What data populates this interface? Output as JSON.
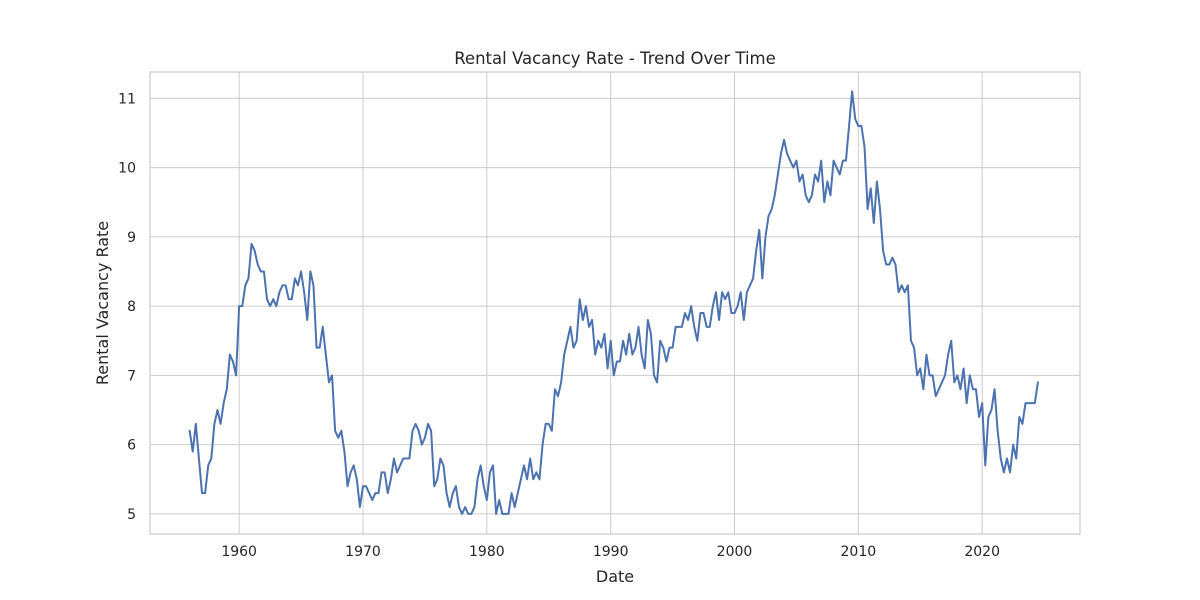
{
  "chart_data": {
    "type": "line",
    "title": "Rental Vacancy Rate - Trend Over Time",
    "xlabel": "Date",
    "ylabel": "Rental Vacancy Rate",
    "xlim": [
      1952.8,
      2027.9
    ],
    "ylim": [
      4.71,
      11.38
    ],
    "x_ticks": [
      1960,
      1970,
      1980,
      1990,
      2000,
      2010,
      2020
    ],
    "y_ticks": [
      5,
      6,
      7,
      8,
      9,
      10,
      11
    ],
    "grid": true,
    "legend": "none",
    "line_color": "#4c72b0",
    "series": [
      {
        "x": [
          1956.0,
          1956.25,
          1956.5,
          1956.75,
          1957.0,
          1957.25,
          1957.5,
          1957.75,
          1958.0,
          1958.25,
          1958.5,
          1958.75,
          1959.0,
          1959.25,
          1959.5,
          1959.75,
          1960.0,
          1960.25,
          1960.5,
          1960.75,
          1961.0,
          1961.25,
          1961.5,
          1961.75,
          1962.0,
          1962.25,
          1962.5,
          1962.75,
          1963.0,
          1963.25,
          1963.5,
          1963.75,
          1964.0,
          1964.25,
          1964.5,
          1964.75,
          1965.0,
          1965.25,
          1965.5,
          1965.75,
          1966.0,
          1966.25,
          1966.5,
          1966.75,
          1967.0,
          1967.25,
          1967.5,
          1967.75,
          1968.0,
          1968.25,
          1968.5,
          1968.75,
          1969.0,
          1969.25,
          1969.5,
          1969.75,
          1970.0,
          1970.25,
          1970.5,
          1970.75,
          1971.0,
          1971.25,
          1971.5,
          1971.75,
          1972.0,
          1972.25,
          1972.5,
          1972.75,
          1973.0,
          1973.25,
          1973.5,
          1973.75,
          1974.0,
          1974.25,
          1974.5,
          1974.75,
          1975.0,
          1975.25,
          1975.5,
          1975.75,
          1976.0,
          1976.25,
          1976.5,
          1976.75,
          1977.0,
          1977.25,
          1977.5,
          1977.75,
          1978.0,
          1978.25,
          1978.5,
          1978.75,
          1979.0,
          1979.25,
          1979.5,
          1979.75,
          1980.0,
          1980.25,
          1980.5,
          1980.75,
          1981.0,
          1981.25,
          1981.5,
          1981.75,
          1982.0,
          1982.25,
          1982.5,
          1982.75,
          1983.0,
          1983.25,
          1983.5,
          1983.75,
          1984.0,
          1984.25,
          1984.5,
          1984.75,
          1985.0,
          1985.25,
          1985.5,
          1985.75,
          1986.0,
          1986.25,
          1986.5,
          1986.75,
          1987.0,
          1987.25,
          1987.5,
          1987.75,
          1988.0,
          1988.25,
          1988.5,
          1988.75,
          1989.0,
          1989.25,
          1989.5,
          1989.75,
          1990.0,
          1990.25,
          1990.5,
          1990.75,
          1991.0,
          1991.25,
          1991.5,
          1991.75,
          1992.0,
          1992.25,
          1992.5,
          1992.75,
          1993.0,
          1993.25,
          1993.5,
          1993.75,
          1994.0,
          1994.25,
          1994.5,
          1994.75,
          1995.0,
          1995.25,
          1995.5,
          1995.75,
          1996.0,
          1996.25,
          1996.5,
          1996.75,
          1997.0,
          1997.25,
          1997.5,
          1997.75,
          1998.0,
          1998.25,
          1998.5,
          1998.75,
          1999.0,
          1999.25,
          1999.5,
          1999.75,
          2000.0,
          2000.25,
          2000.5,
          2000.75,
          2001.0,
          2001.25,
          2001.5,
          2001.75,
          2002.0,
          2002.25,
          2002.5,
          2002.75,
          2003.0,
          2003.25,
          2003.5,
          2003.75,
          2004.0,
          2004.25,
          2004.5,
          2004.75,
          2005.0,
          2005.25,
          2005.5,
          2005.75,
          2006.0,
          2006.25,
          2006.5,
          2006.75,
          2007.0,
          2007.25,
          2007.5,
          2007.75,
          2008.0,
          2008.25,
          2008.5,
          2008.75,
          2009.0,
          2009.25,
          2009.5,
          2009.75,
          2010.0,
          2010.25,
          2010.5,
          2010.75,
          2011.0,
          2011.25,
          2011.5,
          2011.75,
          2012.0,
          2012.25,
          2012.5,
          2012.75,
          2013.0,
          2013.25,
          2013.5,
          2013.75,
          2014.0,
          2014.25,
          2014.5,
          2014.75,
          2015.0,
          2015.25,
          2015.5,
          2015.75,
          2016.0,
          2016.25,
          2016.5,
          2016.75,
          2017.0,
          2017.25,
          2017.5,
          2017.75,
          2018.0,
          2018.25,
          2018.5,
          2018.75,
          2019.0,
          2019.25,
          2019.5,
          2019.75,
          2020.0,
          2020.25,
          2020.5,
          2020.75,
          2021.0,
          2021.25,
          2021.5,
          2021.75,
          2022.0,
          2022.25,
          2022.5,
          2022.75,
          2023.0,
          2023.25,
          2023.5,
          2023.75,
          2024.0,
          2024.25,
          2024.5
        ],
        "y": [
          6.2,
          5.9,
          6.3,
          5.8,
          5.3,
          5.3,
          5.7,
          5.8,
          6.3,
          6.5,
          6.3,
          6.6,
          6.8,
          7.3,
          7.2,
          7.0,
          8.0,
          8.0,
          8.3,
          8.4,
          8.9,
          8.8,
          8.6,
          8.5,
          8.5,
          8.1,
          8.0,
          8.1,
          8.0,
          8.2,
          8.3,
          8.3,
          8.1,
          8.1,
          8.4,
          8.3,
          8.5,
          8.2,
          7.8,
          8.5,
          8.3,
          7.4,
          7.4,
          7.7,
          7.3,
          6.9,
          7.0,
          6.2,
          6.1,
          6.2,
          5.9,
          5.4,
          5.6,
          5.7,
          5.5,
          5.1,
          5.4,
          5.4,
          5.3,
          5.2,
          5.3,
          5.3,
          5.6,
          5.6,
          5.3,
          5.5,
          5.8,
          5.6,
          5.7,
          5.8,
          5.8,
          5.8,
          6.2,
          6.3,
          6.2,
          6.0,
          6.1,
          6.3,
          6.2,
          5.4,
          5.5,
          5.8,
          5.7,
          5.3,
          5.1,
          5.3,
          5.4,
          5.1,
          5.0,
          5.1,
          5.0,
          5.0,
          5.1,
          5.5,
          5.7,
          5.4,
          5.2,
          5.6,
          5.7,
          5.0,
          5.2,
          5.0,
          5.0,
          5.0,
          5.3,
          5.1,
          5.3,
          5.5,
          5.7,
          5.5,
          5.8,
          5.5,
          5.6,
          5.5,
          6.0,
          6.3,
          6.3,
          6.2,
          6.8,
          6.7,
          6.9,
          7.3,
          7.5,
          7.7,
          7.4,
          7.5,
          8.1,
          7.8,
          8.0,
          7.7,
          7.8,
          7.3,
          7.5,
          7.4,
          7.6,
          7.1,
          7.5,
          7.0,
          7.2,
          7.2,
          7.5,
          7.3,
          7.6,
          7.3,
          7.4,
          7.7,
          7.3,
          7.1,
          7.8,
          7.6,
          7.0,
          6.9,
          7.5,
          7.4,
          7.2,
          7.4,
          7.4,
          7.7,
          7.7,
          7.7,
          7.9,
          7.8,
          8.0,
          7.7,
          7.5,
          7.9,
          7.9,
          7.7,
          7.7,
          8.0,
          8.2,
          7.8,
          8.2,
          8.1,
          8.2,
          7.9,
          7.9,
          8.0,
          8.2,
          7.8,
          8.2,
          8.3,
          8.4,
          8.8,
          9.1,
          8.4,
          9.0,
          9.3,
          9.4,
          9.6,
          9.9,
          10.2,
          10.4,
          10.2,
          10.1,
          10.0,
          10.1,
          9.8,
          9.9,
          9.6,
          9.5,
          9.6,
          9.9,
          9.8,
          10.1,
          9.5,
          9.8,
          9.6,
          10.1,
          10.0,
          9.9,
          10.1,
          10.1,
          10.6,
          11.1,
          10.7,
          10.6,
          10.6,
          10.3,
          9.4,
          9.7,
          9.2,
          9.8,
          9.4,
          8.8,
          8.6,
          8.6,
          8.7,
          8.6,
          8.2,
          8.3,
          8.2,
          8.3,
          7.5,
          7.4,
          7.0,
          7.1,
          6.8,
          7.3,
          7.0,
          7.0,
          6.7,
          6.8,
          6.9,
          7.0,
          7.3,
          7.5,
          6.9,
          7.0,
          6.8,
          7.1,
          6.6,
          7.0,
          6.8,
          6.8,
          6.4,
          6.6,
          5.7,
          6.4,
          6.5,
          6.8,
          6.2,
          5.8,
          5.6,
          5.8,
          5.6,
          6.0,
          5.8,
          6.4,
          6.3,
          6.6,
          6.6,
          6.6,
          6.6,
          6.9
        ]
      }
    ]
  }
}
